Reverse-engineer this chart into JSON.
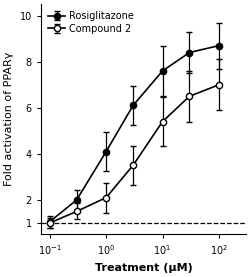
{
  "title": "",
  "xlabel": "Treatment (μM)",
  "ylabel": "Fold activation of PPARγ",
  "xlim": [
    0.07,
    300
  ],
  "ylim": [
    0.5,
    10.5
  ],
  "yticks": [
    2,
    4,
    6,
    8,
    10
  ],
  "ytick_labels": [
    "2",
    "4",
    "6",
    "8",
    "10"
  ],
  "y_label_at_1": "1",
  "dashed_line_y": 1,
  "rosiglitazone": {
    "x": [
      0.1,
      0.3,
      1.0,
      3.0,
      10.0,
      30.0,
      100.0
    ],
    "y": [
      1.05,
      2.0,
      4.1,
      6.1,
      7.6,
      8.4,
      8.7
    ],
    "yerr": [
      0.25,
      0.45,
      0.85,
      0.85,
      1.1,
      0.9,
      1.0
    ],
    "label": "Rosiglitazone",
    "marker": "o",
    "markerfacecolor": "#000000",
    "color": "#000000"
  },
  "compound2": {
    "x": [
      0.1,
      0.3,
      1.0,
      3.0,
      10.0,
      30.0,
      100.0
    ],
    "y": [
      1.0,
      1.5,
      2.1,
      3.5,
      5.4,
      6.5,
      7.0
    ],
    "yerr": [
      0.2,
      0.35,
      0.65,
      0.85,
      1.05,
      1.1,
      1.1
    ],
    "label": "Compound 2",
    "marker": "o",
    "markerfacecolor": "#ffffff",
    "color": "#000000"
  },
  "legend_fontsize": 7,
  "axis_fontsize": 8,
  "tick_fontsize": 7,
  "xtick_positions": [
    0.1,
    1.0,
    10.0,
    100.0
  ],
  "xtick_labels": [
    "$10^{-1}$",
    "$10^{0}$",
    "$10^{1}$",
    "$10^{2}$"
  ]
}
